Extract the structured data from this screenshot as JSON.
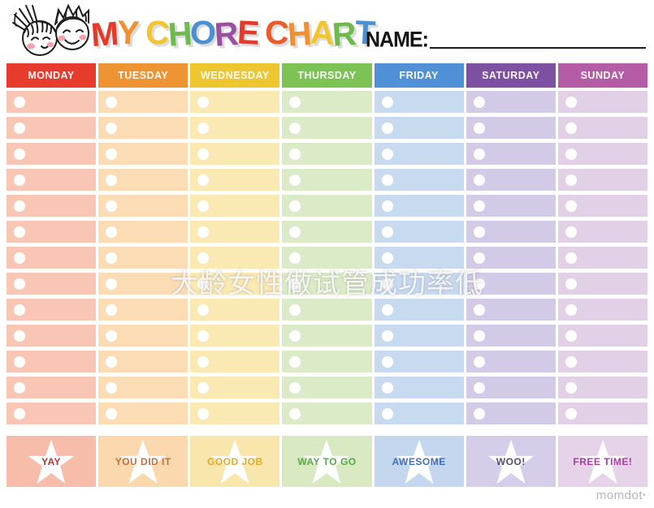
{
  "header": {
    "title": "MY CHORE CHART",
    "title_letters": [
      {
        "ch": "M",
        "color": "#e23a2b"
      },
      {
        "ch": "Y",
        "color": "#f0912f"
      },
      {
        "ch": " ",
        "color": null
      },
      {
        "ch": "C",
        "color": "#f2c430"
      },
      {
        "ch": "H",
        "color": "#6fba4e"
      },
      {
        "ch": "O",
        "color": "#4b90d3"
      },
      {
        "ch": "R",
        "color": "#9b4f9f"
      },
      {
        "ch": "E",
        "color": "#e23a2b"
      },
      {
        "ch": " ",
        "color": null
      },
      {
        "ch": "C",
        "color": "#ea5b2a"
      },
      {
        "ch": "H",
        "color": "#f0912f"
      },
      {
        "ch": "A",
        "color": "#f2c430"
      },
      {
        "ch": "R",
        "color": "#6fba4e"
      },
      {
        "ch": "T",
        "color": "#4b90d3"
      }
    ],
    "name_label": "NAME:"
  },
  "table": {
    "rows_per_column": 13,
    "columns": [
      {
        "day": "MONDAY",
        "header_color": "#e73b2e",
        "row_color": "#f9c6b6",
        "footer_color": "#f8bcab",
        "reward": "YAY",
        "reward_color": "#b23931"
      },
      {
        "day": "TUESDAY",
        "header_color": "#ef9434",
        "row_color": "#fbdcb5",
        "footer_color": "#fbd8ae",
        "reward": "YOU DID IT",
        "reward_color": "#c1713d"
      },
      {
        "day": "WEDNESDAY",
        "header_color": "#eec62f",
        "row_color": "#fae9b3",
        "footer_color": "#f9e6ac",
        "reward": "GOOD JOB",
        "reward_color": "#e2ab29"
      },
      {
        "day": "THURSDAY",
        "header_color": "#7dc254",
        "row_color": "#dcebc7",
        "footer_color": "#d9e9c2",
        "reward": "WAY TO GO",
        "reward_color": "#57a948"
      },
      {
        "day": "FRIDAY",
        "header_color": "#4f90d6",
        "row_color": "#c8daf0",
        "footer_color": "#c4d7ee",
        "reward": "AWESOME",
        "reward_color": "#3e6dc1"
      },
      {
        "day": "SATURDAY",
        "header_color": "#7d50a1",
        "row_color": "#d2cae7",
        "footer_color": "#d5cdea",
        "reward": "WOO!",
        "reward_color": "#564c77"
      },
      {
        "day": "SUNDAY",
        "header_color": "#b45ca6",
        "row_color": "#e2d0e6",
        "footer_color": "#e7d3e9",
        "reward": "FREE TIME!",
        "reward_color": "#a93da0"
      }
    ]
  },
  "watermark": {
    "text": "大龄女性做试管成功率低"
  },
  "branding": {
    "logo_text": "momdot",
    "logo_dot": "•"
  }
}
